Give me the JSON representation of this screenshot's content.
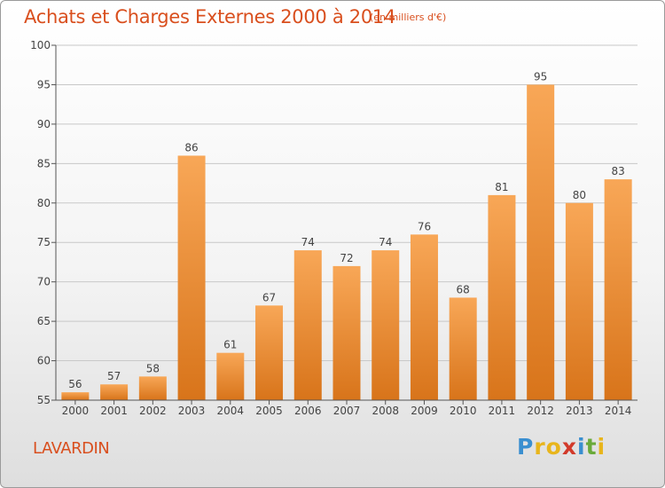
{
  "title": "Achats et Charges Externes 2000 à 2014",
  "subtitle": "(en milliers d'€)",
  "place": "LAVARDIN",
  "brand": {
    "letters": [
      "P",
      "r",
      "o",
      "x",
      "i",
      "t",
      "i"
    ],
    "colors": [
      "#3a8fd0",
      "#e8b51c",
      "#e8b51c",
      "#d23a2a",
      "#3a8fd0",
      "#6aaa3a",
      "#e8b51c"
    ]
  },
  "colors": {
    "accent": "#d94f1e",
    "bar_light": "#f8a757",
    "bar_dark": "#d8741a",
    "grid": "#c8c8c8",
    "axis": "#555555"
  },
  "chart_data": {
    "type": "bar",
    "categories": [
      "2000",
      "2001",
      "2002",
      "2003",
      "2004",
      "2005",
      "2006",
      "2007",
      "2008",
      "2009",
      "2010",
      "2011",
      "2012",
      "2013",
      "2014"
    ],
    "values": [
      56,
      57,
      58,
      86,
      61,
      67,
      74,
      72,
      74,
      76,
      68,
      81,
      95,
      80,
      83
    ],
    "ylim": [
      55,
      100
    ],
    "yticks": [
      55,
      60,
      65,
      70,
      75,
      80,
      85,
      90,
      95,
      100
    ],
    "grid": true,
    "data_labels": true
  }
}
